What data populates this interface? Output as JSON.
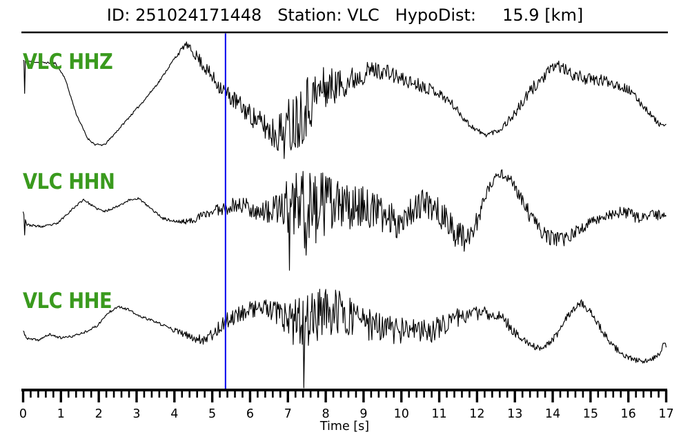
{
  "header": {
    "title_text": "ID: 251024171448   Station: VLC   HypoDist:     15.9 [km]",
    "event_id_label": "ID:",
    "event_id": "251024171448",
    "station_label": "Station:",
    "station": "VLC",
    "hypodist_label": "HypoDist:",
    "hypodist_value": "15.9 [km]"
  },
  "colors": {
    "trace": "#000000",
    "label_green": "#3a9a1e",
    "pick_blue": "#0000ee",
    "axis": "#000000"
  },
  "chart_data": {
    "type": "line",
    "title": "ID: 251024171448   Station: VLC   HypoDist:     15.9 [km]",
    "xlabel": "Time [s]",
    "xlim": [
      0,
      17
    ],
    "x_major_tick": 1,
    "x_minor_tick": 0.2,
    "x_tick_labels": [
      "0",
      "1",
      "2",
      "3",
      "4",
      "5",
      "6",
      "7",
      "8",
      "9",
      "10",
      "11",
      "12",
      "13",
      "14",
      "15",
      "16",
      "17"
    ],
    "grid": false,
    "legend": "none",
    "pick_marker_time": 5.35,
    "traces": [
      {
        "name": "VLC HHZ",
        "seed": 11,
        "mean": [
          [
            0,
            0.95
          ],
          [
            0.4,
            0.9
          ],
          [
            0.85,
            0.88
          ],
          [
            1.1,
            0.5
          ],
          [
            1.4,
            -0.45
          ],
          [
            1.7,
            -1.1
          ],
          [
            1.9,
            -1.27
          ],
          [
            2.15,
            -1.28
          ],
          [
            2.45,
            -0.95
          ],
          [
            2.8,
            -0.55
          ],
          [
            3.2,
            -0.1
          ],
          [
            3.6,
            0.4
          ],
          [
            4.0,
            1.0
          ],
          [
            4.3,
            1.38
          ],
          [
            4.6,
            1.05
          ],
          [
            5.0,
            0.5
          ],
          [
            5.36,
            0.1
          ],
          [
            5.8,
            -0.3
          ],
          [
            6.2,
            -0.65
          ],
          [
            6.6,
            -0.95
          ],
          [
            6.9,
            -0.95
          ],
          [
            7.2,
            -0.6
          ],
          [
            7.5,
            -0.2
          ],
          [
            7.9,
            0.2
          ],
          [
            8.3,
            0.3
          ],
          [
            8.7,
            0.45
          ],
          [
            9.2,
            0.7
          ],
          [
            9.6,
            0.65
          ],
          [
            10.0,
            0.45
          ],
          [
            10.5,
            0.3
          ],
          [
            10.9,
            0.15
          ],
          [
            11.3,
            -0.15
          ],
          [
            11.8,
            -0.75
          ],
          [
            12.2,
            -1.02
          ],
          [
            12.6,
            -0.88
          ],
          [
            13.0,
            -0.45
          ],
          [
            13.5,
            0.25
          ],
          [
            14.1,
            0.85
          ],
          [
            14.5,
            0.58
          ],
          [
            15.0,
            0.44
          ],
          [
            15.5,
            0.4
          ],
          [
            16.0,
            0.18
          ],
          [
            16.4,
            -0.25
          ],
          [
            16.8,
            -0.72
          ],
          [
            17,
            -0.78
          ]
        ],
        "noise": [
          [
            0,
            0.02
          ],
          [
            3.9,
            0.03
          ],
          [
            4.3,
            0.08
          ],
          [
            4.7,
            0.18
          ],
          [
            5.2,
            0.22
          ],
          [
            5.7,
            0.26
          ],
          [
            6.2,
            0.3
          ],
          [
            6.7,
            0.5
          ],
          [
            7.0,
            0.8
          ],
          [
            7.4,
            0.9
          ],
          [
            7.8,
            0.65
          ],
          [
            8.3,
            0.45
          ],
          [
            8.9,
            0.3
          ],
          [
            9.4,
            0.22
          ],
          [
            10.0,
            0.2
          ],
          [
            10.6,
            0.17
          ],
          [
            11.2,
            0.12
          ],
          [
            11.8,
            0.08
          ],
          [
            12.3,
            0.06
          ],
          [
            12.8,
            0.1
          ],
          [
            13.4,
            0.18
          ],
          [
            14.0,
            0.15
          ],
          [
            14.6,
            0.16
          ],
          [
            15.3,
            0.16
          ],
          [
            16.0,
            0.12
          ],
          [
            16.6,
            0.08
          ],
          [
            17,
            0.05
          ]
        ],
        "spikes": [
          {
            "t": 0.04,
            "v": 0.08
          }
        ]
      },
      {
        "name": "VLC HHN",
        "seed": 23,
        "mean": [
          [
            0,
            0.22
          ],
          [
            0.1,
            -0.15
          ],
          [
            0.5,
            -0.2
          ],
          [
            0.9,
            -0.12
          ],
          [
            1.25,
            0.22
          ],
          [
            1.6,
            0.52
          ],
          [
            1.9,
            0.3
          ],
          [
            2.15,
            0.2
          ],
          [
            2.45,
            0.32
          ],
          [
            2.8,
            0.5
          ],
          [
            3.05,
            0.55
          ],
          [
            3.35,
            0.3
          ],
          [
            3.7,
            0.02
          ],
          [
            4.05,
            -0.07
          ],
          [
            4.4,
            -0.06
          ],
          [
            4.8,
            0.12
          ],
          [
            5.15,
            0.26
          ],
          [
            5.5,
            0.35
          ],
          [
            5.85,
            0.38
          ],
          [
            6.15,
            0.22
          ],
          [
            6.5,
            0.18
          ],
          [
            6.85,
            0.3
          ],
          [
            7.2,
            0.33
          ],
          [
            7.6,
            0.28
          ],
          [
            8.0,
            0.38
          ],
          [
            8.5,
            0.3
          ],
          [
            9.0,
            0.34
          ],
          [
            9.5,
            0.12
          ],
          [
            9.9,
            -0.08
          ],
          [
            10.3,
            0.28
          ],
          [
            10.6,
            0.42
          ],
          [
            10.95,
            0.25
          ],
          [
            11.3,
            -0.22
          ],
          [
            11.65,
            -0.5
          ],
          [
            11.95,
            -0.2
          ],
          [
            12.3,
            0.8
          ],
          [
            12.6,
            1.22
          ],
          [
            12.9,
            1.05
          ],
          [
            13.2,
            0.45
          ],
          [
            13.55,
            -0.15
          ],
          [
            13.9,
            -0.48
          ],
          [
            14.3,
            -0.55
          ],
          [
            14.7,
            -0.28
          ],
          [
            15.1,
            -0.02
          ],
          [
            15.5,
            0.12
          ],
          [
            15.9,
            0.18
          ],
          [
            16.3,
            0.02
          ],
          [
            16.7,
            0.12
          ],
          [
            17,
            0.08
          ]
        ],
        "noise": [
          [
            0,
            0.03
          ],
          [
            3.6,
            0.03
          ],
          [
            4.3,
            0.07
          ],
          [
            4.9,
            0.13
          ],
          [
            5.4,
            0.2
          ],
          [
            5.9,
            0.24
          ],
          [
            6.3,
            0.26
          ],
          [
            6.7,
            0.4
          ],
          [
            7.0,
            1.05
          ],
          [
            7.3,
            1.25
          ],
          [
            7.7,
            1.0
          ],
          [
            8.1,
            0.8
          ],
          [
            8.6,
            0.6
          ],
          [
            9.1,
            0.5
          ],
          [
            9.7,
            0.45
          ],
          [
            10.2,
            0.4
          ],
          [
            10.8,
            0.35
          ],
          [
            11.3,
            0.45
          ],
          [
            11.9,
            0.3
          ],
          [
            12.4,
            0.12
          ],
          [
            12.9,
            0.12
          ],
          [
            13.4,
            0.22
          ],
          [
            14.0,
            0.2
          ],
          [
            14.6,
            0.16
          ],
          [
            15.2,
            0.14
          ],
          [
            15.9,
            0.16
          ],
          [
            16.5,
            0.14
          ],
          [
            17,
            0.14
          ]
        ],
        "spikes": [
          {
            "t": 0.04,
            "v": -0.42
          },
          {
            "t": 7.03,
            "v": -1.35
          },
          {
            "t": 7.48,
            "v": -0.95
          }
        ]
      },
      {
        "name": "VLC HHE",
        "seed": 37,
        "mean": [
          [
            0,
            0.12
          ],
          [
            0.1,
            -0.08
          ],
          [
            0.4,
            -0.12
          ],
          [
            0.7,
            0.03
          ],
          [
            1.0,
            -0.06
          ],
          [
            1.3,
            -0.02
          ],
          [
            1.6,
            0.08
          ],
          [
            1.95,
            0.25
          ],
          [
            2.25,
            0.6
          ],
          [
            2.5,
            0.78
          ],
          [
            2.75,
            0.7
          ],
          [
            3.05,
            0.52
          ],
          [
            3.4,
            0.4
          ],
          [
            3.75,
            0.25
          ],
          [
            4.1,
            0.1
          ],
          [
            4.45,
            -0.05
          ],
          [
            4.75,
            -0.1
          ],
          [
            5.05,
            0.08
          ],
          [
            5.36,
            0.38
          ],
          [
            5.75,
            0.6
          ],
          [
            6.1,
            0.73
          ],
          [
            6.45,
            0.7
          ],
          [
            6.8,
            0.5
          ],
          [
            7.15,
            0.25
          ],
          [
            7.5,
            0.4
          ],
          [
            7.85,
            0.58
          ],
          [
            8.2,
            0.62
          ],
          [
            8.6,
            0.55
          ],
          [
            9.0,
            0.35
          ],
          [
            9.4,
            0.2
          ],
          [
            9.8,
            0.15
          ],
          [
            10.3,
            0.12
          ],
          [
            10.8,
            0.12
          ],
          [
            11.25,
            0.38
          ],
          [
            11.7,
            0.55
          ],
          [
            12.15,
            0.6
          ],
          [
            12.6,
            0.52
          ],
          [
            13.0,
            0.1
          ],
          [
            13.4,
            -0.28
          ],
          [
            13.75,
            -0.33
          ],
          [
            14.1,
            0.0
          ],
          [
            14.45,
            0.6
          ],
          [
            14.75,
            0.88
          ],
          [
            15.05,
            0.55
          ],
          [
            15.45,
            -0.1
          ],
          [
            15.85,
            -0.52
          ],
          [
            16.25,
            -0.67
          ],
          [
            16.6,
            -0.65
          ],
          [
            16.85,
            -0.45
          ],
          [
            16.95,
            -0.12
          ],
          [
            17,
            -0.3
          ]
        ],
        "noise": [
          [
            0,
            0.03
          ],
          [
            1.9,
            0.03
          ],
          [
            2.5,
            0.04
          ],
          [
            3.4,
            0.03
          ],
          [
            4.1,
            0.07
          ],
          [
            4.6,
            0.13
          ],
          [
            5.1,
            0.18
          ],
          [
            5.6,
            0.22
          ],
          [
            6.1,
            0.24
          ],
          [
            6.6,
            0.3
          ],
          [
            7.0,
            0.55
          ],
          [
            7.4,
            0.85
          ],
          [
            7.8,
            0.7
          ],
          [
            8.3,
            0.6
          ],
          [
            8.8,
            0.5
          ],
          [
            9.3,
            0.42
          ],
          [
            9.8,
            0.38
          ],
          [
            10.3,
            0.32
          ],
          [
            10.8,
            0.3
          ],
          [
            11.3,
            0.28
          ],
          [
            11.8,
            0.2
          ],
          [
            12.3,
            0.16
          ],
          [
            12.8,
            0.16
          ],
          [
            13.3,
            0.1
          ],
          [
            13.8,
            0.08
          ],
          [
            14.3,
            0.1
          ],
          [
            14.8,
            0.09
          ],
          [
            15.3,
            0.1
          ],
          [
            15.8,
            0.08
          ],
          [
            16.3,
            0.07
          ],
          [
            16.8,
            0.06
          ],
          [
            17,
            0.05
          ]
        ],
        "spikes": [
          {
            "t": 7.42,
            "v": -1.38
          }
        ]
      }
    ]
  }
}
